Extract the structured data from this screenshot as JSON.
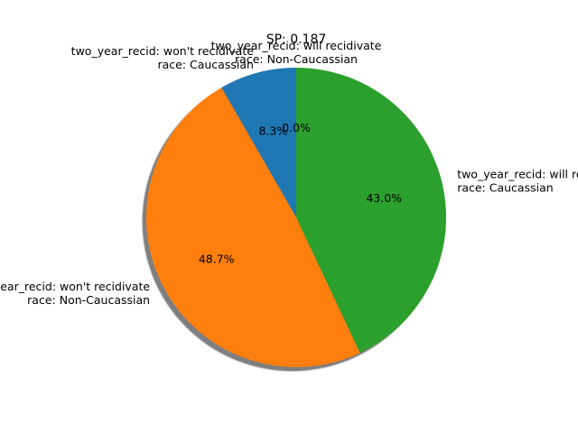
{
  "chart_data": {
    "type": "pie",
    "title": "SP: 0.187",
    "start_angle_deg": 90,
    "direction": "counterclockwise",
    "shadow": true,
    "slices": [
      {
        "label": [
          "two_year_recid: will recidivate",
          "race: Non-Caucassian"
        ],
        "value": 0.0,
        "pct_text": "0.0%",
        "color": "#d62728"
      },
      {
        "label": [
          "two_year_recid: won't recidivate",
          "race: Caucassian"
        ],
        "value": 8.3,
        "pct_text": "8.3%",
        "color": "#1f77b4"
      },
      {
        "label": [
          "two_year_recid: won't recidivate",
          "race: Non-Caucassian"
        ],
        "value": 48.7,
        "pct_text": "48.7%",
        "color": "#ff7f0e"
      },
      {
        "label": [
          "two_year_recid: will recidivate",
          "race: Caucassian"
        ],
        "value": 43.0,
        "pct_text": "43.0%",
        "color": "#2ca02c"
      }
    ]
  }
}
